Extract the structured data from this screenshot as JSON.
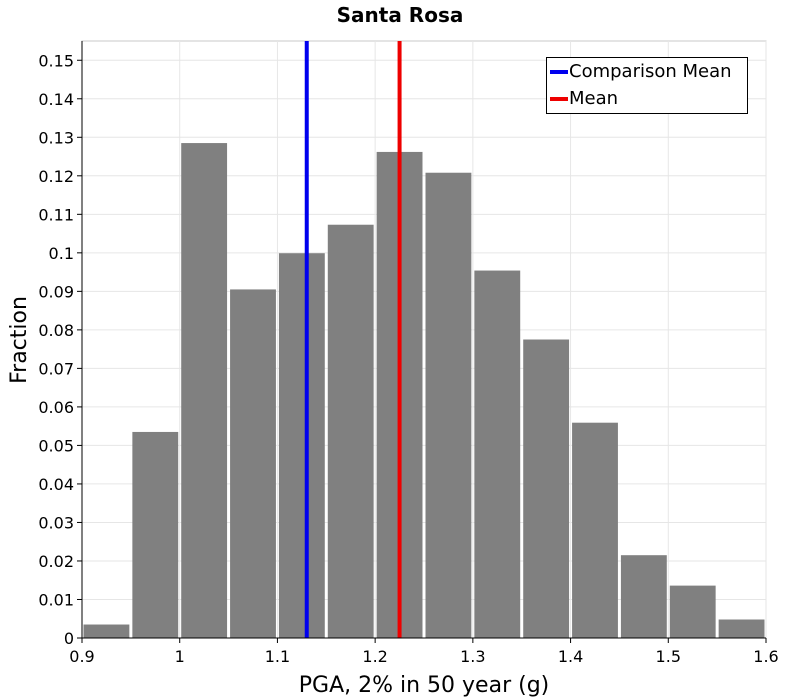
{
  "chart_data": {
    "type": "bar",
    "title": "Santa Rosa",
    "xlabel": "PGA, 2% in 50 year (g)",
    "ylabel": "Fraction",
    "xlim": [
      0.9,
      1.6
    ],
    "ylim": [
      0,
      0.155
    ],
    "bin_width": 0.05,
    "xticks": [
      "0.9",
      "1",
      "1.1",
      "1.2",
      "1.3",
      "1.4",
      "1.5",
      "1.6"
    ],
    "xtick_values": [
      0.9,
      1.0,
      1.1,
      1.2,
      1.3,
      1.4,
      1.5,
      1.6
    ],
    "yticks": [
      "0",
      "0.01",
      "0.02",
      "0.03",
      "0.04",
      "0.05",
      "0.06",
      "0.07",
      "0.08",
      "0.09",
      "0.1",
      "0.11",
      "0.12",
      "0.13",
      "0.14",
      "0.15"
    ],
    "ytick_values": [
      0,
      0.01,
      0.02,
      0.03,
      0.04,
      0.05,
      0.06,
      0.07,
      0.08,
      0.09,
      0.1,
      0.11,
      0.12,
      0.13,
      0.14,
      0.15
    ],
    "bins": [
      {
        "center": 0.925,
        "value": 0.0035
      },
      {
        "center": 0.975,
        "value": 0.0535
      },
      {
        "center": 1.025,
        "value": 0.1285
      },
      {
        "center": 1.075,
        "value": 0.0905
      },
      {
        "center": 1.125,
        "value": 0.0999
      },
      {
        "center": 1.175,
        "value": 0.1073
      },
      {
        "center": 1.225,
        "value": 0.1262
      },
      {
        "center": 1.275,
        "value": 0.1208
      },
      {
        "center": 1.325,
        "value": 0.0954
      },
      {
        "center": 1.375,
        "value": 0.0775
      },
      {
        "center": 1.425,
        "value": 0.0559
      },
      {
        "center": 1.475,
        "value": 0.0215
      },
      {
        "center": 1.525,
        "value": 0.0136
      },
      {
        "center": 1.575,
        "value": 0.0048
      }
    ],
    "bar_color": "#808080",
    "vlines": [
      {
        "name": "Comparison Mean",
        "x": 1.13,
        "color": "#0000ee"
      },
      {
        "name": "Mean",
        "x": 1.225,
        "color": "#ee0000"
      }
    ],
    "legend": {
      "position": "top-right",
      "entries": [
        {
          "label": "Comparison Mean",
          "color": "#0000ee"
        },
        {
          "label": "Mean",
          "color": "#ee0000"
        }
      ]
    },
    "grid": true
  }
}
